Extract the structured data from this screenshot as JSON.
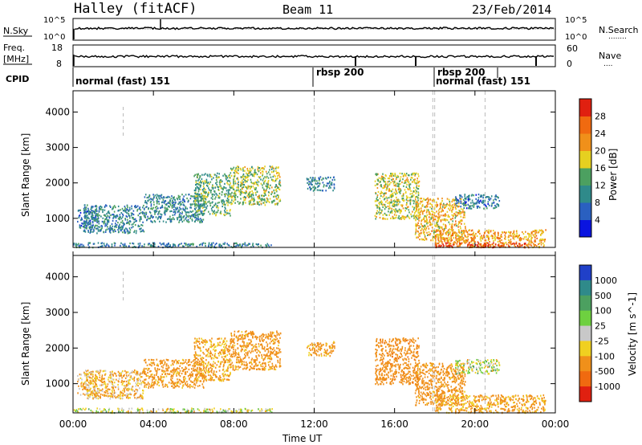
{
  "header": {
    "station": "Halley (fitACF)",
    "beam": "Beam 11",
    "date": "23/Feb/2014"
  },
  "strip_labels": {
    "nsky": "N.Sky",
    "nsearch": "N.Search",
    "nsearch_dots": "........",
    "freq_line1": "Freq.",
    "freq_line2": "[MHz]",
    "nave": "Nave",
    "nave_dots": "....",
    "cpid": "CPID",
    "nsky_top": "10^5",
    "nsky_bottom": "10^0",
    "nsearch_top": "10^5",
    "nsearch_bottom": "10^0",
    "freq_top": "18",
    "freq_bottom": "8",
    "nave_top": "60",
    "nave_bottom": "0"
  },
  "cpid_segments": [
    {
      "label": "normal (fast) 151",
      "start_hour": 0.0
    },
    {
      "label": "rbsp 200",
      "start_hour": 12.0
    },
    {
      "label": "rbsp 200",
      "start_hour": 17.9
    },
    {
      "label": "normal (fast) 151",
      "start_hour": 18.0
    },
    {
      "label": "",
      "start_hour": 20.5
    }
  ],
  "chart_data": [
    {
      "type": "heatmap",
      "title": "Power",
      "xlabel": "",
      "ylabel": "Slant Range [km]",
      "xlim": [
        0,
        24
      ],
      "ylim": [
        180,
        4600
      ],
      "yticks": [
        "1000",
        "2000",
        "3000",
        "4000"
      ],
      "colorbar": {
        "label": "Power [dB]",
        "range": [
          0,
          32
        ],
        "ticks": [
          "4",
          "8",
          "12",
          "16",
          "20",
          "24",
          "28"
        ],
        "colors": [
          "#0a14e0",
          "#2a60c0",
          "#2f8a8a",
          "#4ca060",
          "#e6d020",
          "#f0901a",
          "#f06a10",
          "#e02010"
        ]
      },
      "echo_regions": [
        {
          "x": [
            0.2,
            1.2
          ],
          "y": [
            700,
            1300
          ],
          "value": 8
        },
        {
          "x": [
            0.5,
            3.5
          ],
          "y": [
            600,
            1400
          ],
          "value": 10
        },
        {
          "x": [
            3.5,
            6.5
          ],
          "y": [
            900,
            1700
          ],
          "value": 10
        },
        {
          "x": [
            6.0,
            7.8
          ],
          "y": [
            1100,
            2300
          ],
          "value": 13
        },
        {
          "x": [
            7.8,
            10.3
          ],
          "y": [
            1400,
            2500
          ],
          "value": 16
        },
        {
          "x": [
            11.6,
            13.0
          ],
          "y": [
            1800,
            2200
          ],
          "value": 9
        },
        {
          "x": [
            15.0,
            17.2
          ],
          "y": [
            1000,
            2300
          ],
          "value": 17
        },
        {
          "x": [
            17.0,
            19.5
          ],
          "y": [
            400,
            1600
          ],
          "value": 20
        },
        {
          "x": [
            19.0,
            21.2
          ],
          "y": [
            1300,
            1700
          ],
          "value": 8
        },
        {
          "x": [
            18.0,
            23.5
          ],
          "y": [
            200,
            700
          ],
          "value": 22
        },
        {
          "x": [
            18.0,
            22.5
          ],
          "y": [
            200,
            330
          ],
          "value": 30
        },
        {
          "x": [
            0.0,
            10.0
          ],
          "y": [
            200,
            330
          ],
          "value": 9
        }
      ]
    },
    {
      "type": "heatmap",
      "title": "Velocity",
      "xlabel": "Time UT",
      "ylabel": "Slant Range [km]",
      "xlim": [
        0,
        24
      ],
      "ylim": [
        180,
        4600
      ],
      "xticks": [
        "00:00",
        "04:00",
        "08:00",
        "12:00",
        "16:00",
        "20:00",
        "00:00"
      ],
      "yticks": [
        "1000",
        "2000",
        "3000",
        "4000"
      ],
      "colorbar": {
        "label": "Velocity [m s^-1]",
        "ticks": [
          "1000",
          "500",
          "100",
          "25",
          "-25",
          "-100",
          "-500",
          "-1000"
        ],
        "colors": [
          "#2040c8",
          "#2f8a8a",
          "#4ca060",
          "#6ed040",
          "#c8c8c8",
          "#f0d020",
          "#f0901a",
          "#f06a10",
          "#e02010"
        ]
      },
      "echo_regions": [
        {
          "x": [
            0.2,
            1.2
          ],
          "y": [
            700,
            1300
          ],
          "value": -100
        },
        {
          "x": [
            0.5,
            3.5
          ],
          "y": [
            600,
            1400
          ],
          "value": -100
        },
        {
          "x": [
            3.5,
            6.5
          ],
          "y": [
            900,
            1700
          ],
          "value": -200
        },
        {
          "x": [
            6.0,
            7.8
          ],
          "y": [
            1100,
            2300
          ],
          "value": -150
        },
        {
          "x": [
            7.8,
            10.3
          ],
          "y": [
            1400,
            2500
          ],
          "value": -200
        },
        {
          "x": [
            11.6,
            13.0
          ],
          "y": [
            1800,
            2200
          ],
          "value": -150
        },
        {
          "x": [
            15.0,
            17.2
          ],
          "y": [
            1000,
            2300
          ],
          "value": -400
        },
        {
          "x": [
            17.0,
            19.5
          ],
          "y": [
            400,
            1600
          ],
          "value": -200
        },
        {
          "x": [
            19.0,
            21.2
          ],
          "y": [
            1300,
            1700
          ],
          "value": 0
        },
        {
          "x": [
            18.0,
            23.5
          ],
          "y": [
            200,
            700
          ],
          "value": -150
        },
        {
          "x": [
            0.0,
            10.0
          ],
          "y": [
            200,
            330
          ],
          "value": 0
        }
      ]
    }
  ]
}
